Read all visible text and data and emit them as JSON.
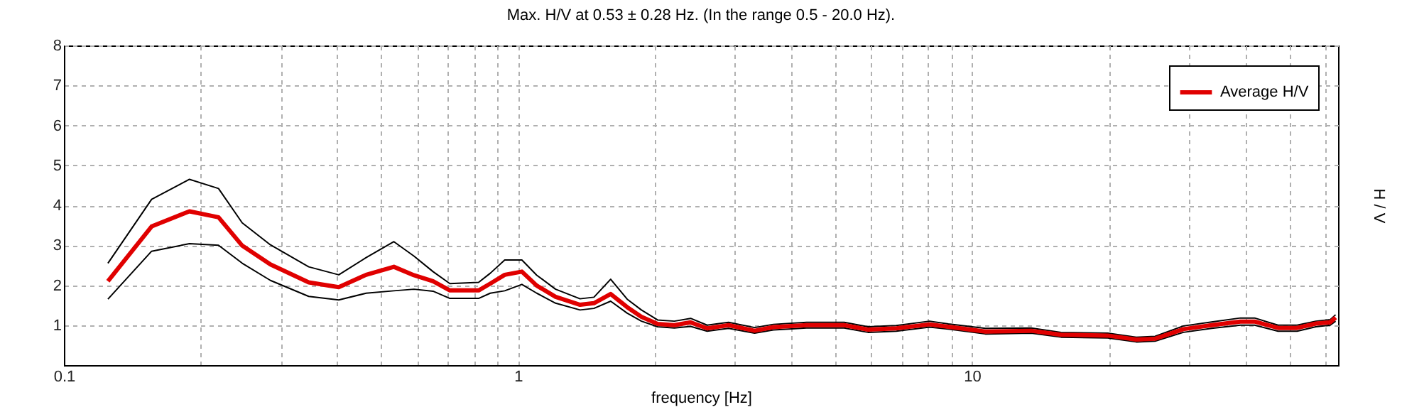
{
  "chart_data": {
    "type": "line",
    "title": "Max. H/V at 0.53 ± 0.28 Hz. (In the range 0.5 - 20.0 Hz).",
    "xlabel": "frequency [Hz]",
    "ylabel": "H / V",
    "log": "x",
    "grid": true,
    "legend": "top right",
    "xlim": [
      0.1,
      64
    ],
    "xticks": [
      0.1,
      {
        "value": 0.2,
        "label": null
      },
      {
        "value": 0.3,
        "label": null
      },
      {
        "value": 0.4,
        "label": null
      },
      {
        "value": 0.5,
        "label": null
      },
      {
        "value": 0.6,
        "label": null
      },
      {
        "value": 0.7,
        "label": null
      },
      {
        "value": 0.8,
        "label": null
      },
      {
        "value": 0.9,
        "label": null
      },
      1,
      {
        "value": 2,
        "label": null
      },
      {
        "value": 3,
        "label": null
      },
      {
        "value": 4,
        "label": null
      },
      {
        "value": 5,
        "label": null
      },
      {
        "value": 6,
        "label": null
      },
      {
        "value": 7,
        "label": null
      },
      {
        "value": 8,
        "label": null
      },
      {
        "value": 9,
        "label": null
      },
      10,
      {
        "value": 20,
        "label": null
      },
      {
        "value": 30,
        "label": null
      },
      {
        "value": 40,
        "label": null
      },
      {
        "value": 50,
        "label": null
      },
      {
        "value": 60,
        "label": null
      }
    ],
    "ylim": [
      0,
      8
    ],
    "yticks": [
      1,
      2,
      3,
      4,
      5,
      6,
      7,
      8
    ],
    "x": [
      0.125,
      0.156,
      0.189,
      0.219,
      0.247,
      0.285,
      0.346,
      0.403,
      0.463,
      0.533,
      0.59,
      0.65,
      0.708,
      0.819,
      0.869,
      0.935,
      1.02,
      1.1,
      1.21,
      1.37,
      1.47,
      1.6,
      1.74,
      1.87,
      2.03,
      2.21,
      2.4,
      2.61,
      2.91,
      3.32,
      3.65,
      4.32,
      5.23,
      5.9,
      6.81,
      8.06,
      8.87,
      10.7,
      13.5,
      15.7,
      19.9,
      23.0,
      25.3,
      29.2,
      33.7,
      39.0,
      41.9,
      47.2,
      52.0,
      57.2,
      61.5,
      63.2
    ],
    "series": [
      {
        "color": "#000000",
        "values": [
          2.55,
          4.15,
          4.65,
          4.42,
          3.56,
          3.01,
          2.46,
          2.26,
          2.69,
          3.09,
          2.73,
          2.34,
          2.04,
          2.07,
          2.3,
          2.63,
          2.63,
          2.25,
          1.9,
          1.66,
          1.7,
          2.15,
          1.65,
          1.38,
          1.13,
          1.1,
          1.17,
          1.0,
          1.07,
          0.94,
          1.02,
          1.07,
          1.07,
          0.96,
          0.99,
          1.1,
          1.03,
          0.92,
          0.93,
          0.82,
          0.8,
          0.7,
          0.72,
          0.98,
          1.08,
          1.18,
          1.18,
          1.0,
          1.0,
          1.1,
          1.14,
          1.26
        ]
      },
      {
        "color": "#000000",
        "values": [
          1.65,
          2.85,
          3.04,
          3.0,
          2.55,
          2.12,
          1.72,
          1.63,
          1.8,
          1.86,
          1.9,
          1.85,
          1.67,
          1.67,
          1.8,
          1.86,
          2.02,
          1.8,
          1.55,
          1.38,
          1.42,
          1.6,
          1.3,
          1.1,
          0.96,
          0.93,
          0.97,
          0.85,
          0.92,
          0.8,
          0.88,
          0.93,
          0.93,
          0.82,
          0.85,
          0.95,
          0.9,
          0.78,
          0.8,
          0.7,
          0.68,
          0.58,
          0.6,
          0.82,
          0.92,
          1.0,
          1.0,
          0.85,
          0.85,
          0.96,
          1.0,
          1.1
        ]
      },
      {
        "name": "Average H/V",
        "color": "#e00000",
        "values": [
          2.1,
          3.47,
          3.85,
          3.7,
          2.99,
          2.52,
          2.07,
          1.95,
          2.26,
          2.46,
          2.25,
          2.1,
          1.87,
          1.87,
          2.04,
          2.26,
          2.34,
          1.99,
          1.71,
          1.51,
          1.55,
          1.78,
          1.45,
          1.21,
          1.03,
          1.0,
          1.07,
          0.92,
          1.0,
          0.86,
          0.95,
          1.0,
          1.0,
          0.89,
          0.92,
          1.02,
          0.96,
          0.84,
          0.86,
          0.76,
          0.74,
          0.64,
          0.66,
          0.9,
          1.0,
          1.09,
          1.09,
          0.93,
          0.93,
          1.04,
          1.07,
          1.19
        ]
      }
    ]
  }
}
